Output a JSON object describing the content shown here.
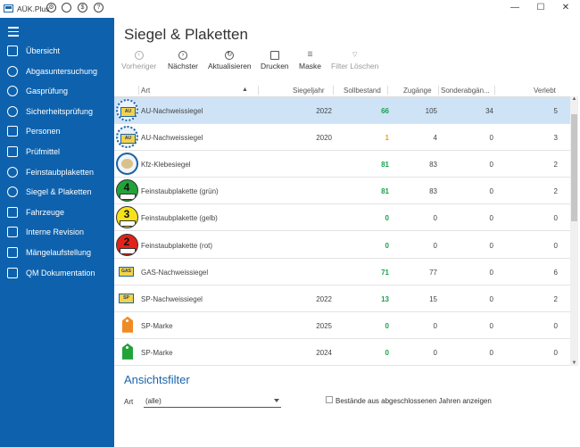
{
  "window": {
    "title": "AÜK.Plus"
  },
  "sidebar": {
    "items": [
      {
        "label": "Übersicht",
        "icon": "home-icon"
      },
      {
        "label": "Abgasuntersuchung",
        "icon": "au-icon"
      },
      {
        "label": "Gasprüfung",
        "icon": "gap-icon"
      },
      {
        "label": "Sicherheitsprüfung",
        "icon": "sp-icon"
      },
      {
        "label": "Personen",
        "icon": "persons-icon"
      },
      {
        "label": "Prüfmittel",
        "icon": "ruler-icon"
      },
      {
        "label": "Feinstaubplaketten",
        "icon": "plakette-icon"
      },
      {
        "label": "Siegel & Plaketten",
        "icon": "seal-icon"
      },
      {
        "label": "Fahrzeuge",
        "icon": "car-icon"
      },
      {
        "label": "Interne Revision",
        "icon": "revision-icon"
      },
      {
        "label": "Mängelaufstellung",
        "icon": "chart-icon"
      },
      {
        "label": "QM Dokumentation",
        "icon": "document-icon"
      }
    ]
  },
  "page": {
    "title": "Siegel & Plaketten"
  },
  "toolbar": {
    "prev": "Vorheriger",
    "next": "Nächster",
    "refresh": "Aktualisieren",
    "print": "Drucken",
    "mask": "Maske",
    "clear": "Filter Löschen"
  },
  "table": {
    "headers": {
      "art": "Art",
      "year": "Siegeljahr",
      "soll": "Sollbestand",
      "zu": "Zugänge",
      "sonder": "Sonderabgän...",
      "verlebt": "Verlebt"
    },
    "rows": [
      {
        "art": "AU-Nachweissiegel",
        "year": "2022",
        "soll": "66",
        "zu": "105",
        "sonder": "34",
        "verlebt": "5",
        "kind": "au",
        "badge": "AU"
      },
      {
        "art": "AU-Nachweissiegel",
        "year": "2020",
        "soll": "1",
        "zu": "4",
        "sonder": "0",
        "verlebt": "3",
        "kind": "au",
        "badge": "AU"
      },
      {
        "art": "Kfz-Klebesiegel",
        "year": "",
        "soll": "81",
        "zu": "83",
        "sonder": "0",
        "verlebt": "2",
        "kind": "kfz",
        "badge": ""
      },
      {
        "art": "Feinstaubplakette (grün)",
        "year": "",
        "soll": "81",
        "zu": "83",
        "sonder": "0",
        "verlebt": "2",
        "kind": "plakette",
        "badge": "4"
      },
      {
        "art": "Feinstaubplakette (gelb)",
        "year": "",
        "soll": "0",
        "zu": "0",
        "sonder": "0",
        "verlebt": "0",
        "kind": "plakette",
        "badge": "3"
      },
      {
        "art": "Feinstaubplakette (rot)",
        "year": "",
        "soll": "0",
        "zu": "0",
        "sonder": "0",
        "verlebt": "0",
        "kind": "plakette",
        "badge": "2"
      },
      {
        "art": "GAS-Nachweissiegel",
        "year": "",
        "soll": "71",
        "zu": "77",
        "sonder": "0",
        "verlebt": "6",
        "kind": "gas",
        "badge": "GAS"
      },
      {
        "art": "SP-Nachweissiegel",
        "year": "2022",
        "soll": "13",
        "zu": "15",
        "sonder": "0",
        "verlebt": "2",
        "kind": "sp",
        "badge": "SP"
      },
      {
        "art": "SP-Marke",
        "year": "2025",
        "soll": "0",
        "zu": "0",
        "sonder": "0",
        "verlebt": "0",
        "kind": "tag",
        "badge": ""
      },
      {
        "art": "SP-Marke",
        "year": "2024",
        "soll": "0",
        "zu": "0",
        "sonder": "0",
        "verlebt": "0",
        "kind": "tag",
        "badge": ""
      }
    ],
    "plakette_colors": [
      "#22a33a",
      "#f5e21b",
      "#e2231a"
    ],
    "tag_colors": [
      "#f08a24",
      "#22a33a"
    ],
    "selected_row": 0
  },
  "filter": {
    "title": "Ansichtsfilter",
    "art_label": "Art",
    "art_value": "(alle)",
    "checkbox_label": "Bestände aus abgeschlossenen Jahren anzeigen"
  },
  "colors": {
    "sidebar": "#0e62ad",
    "selection": "#cfe3f6",
    "accent": "#1a63a8",
    "positive": "#16a34a",
    "warning": "#f59e0b"
  }
}
